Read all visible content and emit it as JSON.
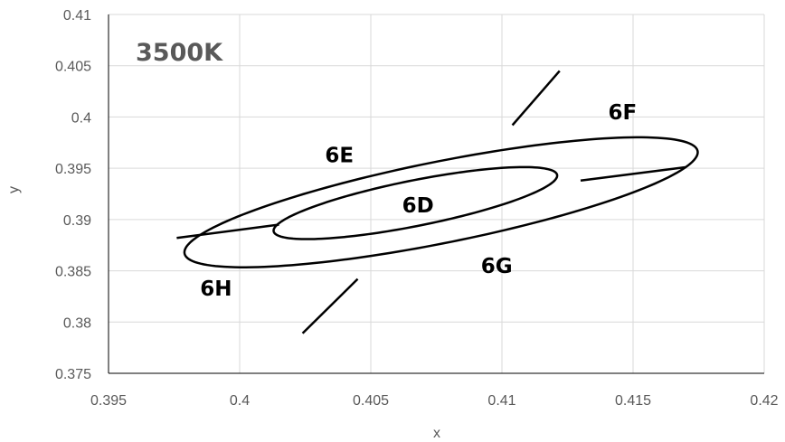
{
  "chart_data": {
    "type": "scatter",
    "title": "3500K",
    "xlabel": "x",
    "ylabel": "y",
    "xlim": [
      0.395,
      0.42
    ],
    "ylim": [
      0.375,
      0.41
    ],
    "grid": true,
    "x_ticks": [
      "0.395",
      "0.4",
      "0.405",
      "0.41",
      "0.415",
      "0.42"
    ],
    "y_ticks": [
      "0.375",
      "0.38",
      "0.385",
      "0.39",
      "0.395",
      "0.4",
      "0.405",
      "0.41"
    ],
    "x_tick_values": [
      0.395,
      0.4,
      0.405,
      0.41,
      0.415,
      0.42
    ],
    "y_tick_values": [
      0.375,
      0.38,
      0.385,
      0.39,
      0.395,
      0.4,
      0.405,
      0.41
    ],
    "colors": {
      "line": "#000000",
      "grid": "#d9d9d9",
      "text": "#595959"
    },
    "ellipses": [
      {
        "name": "outer",
        "cx": 0.40768,
        "cy": 0.39168,
        "rx_axis": 0.0111,
        "ry_axis": 0.00357,
        "theta_deg": 29.9
      },
      {
        "name": "inner",
        "cx": 0.4067,
        "cy": 0.3916,
        "rx_axis": 0.00613,
        "ry_axis": 0.002,
        "theta_deg": 29.9
      }
    ],
    "segments": [
      {
        "from": [
          0.4122,
          0.4045
        ],
        "to": [
          0.4104,
          0.3992
        ]
      },
      {
        "from": [
          0.417,
          0.3951
        ],
        "to": [
          0.413,
          0.3938
        ]
      },
      {
        "from": [
          0.4024,
          0.3789
        ],
        "to": [
          0.4045,
          0.3842
        ]
      },
      {
        "from": [
          0.3976,
          0.3882
        ],
        "to": [
          0.4015,
          0.3895
        ]
      }
    ],
    "bins": [
      {
        "label": "6D",
        "x": 0.4068,
        "y": 0.3914
      },
      {
        "label": "6E",
        "x": 0.4038,
        "y": 0.3963
      },
      {
        "label": "6F",
        "x": 0.4146,
        "y": 0.4005
      },
      {
        "label": "6G",
        "x": 0.4098,
        "y": 0.3855
      },
      {
        "label": "6H",
        "x": 0.3991,
        "y": 0.3833
      }
    ]
  }
}
